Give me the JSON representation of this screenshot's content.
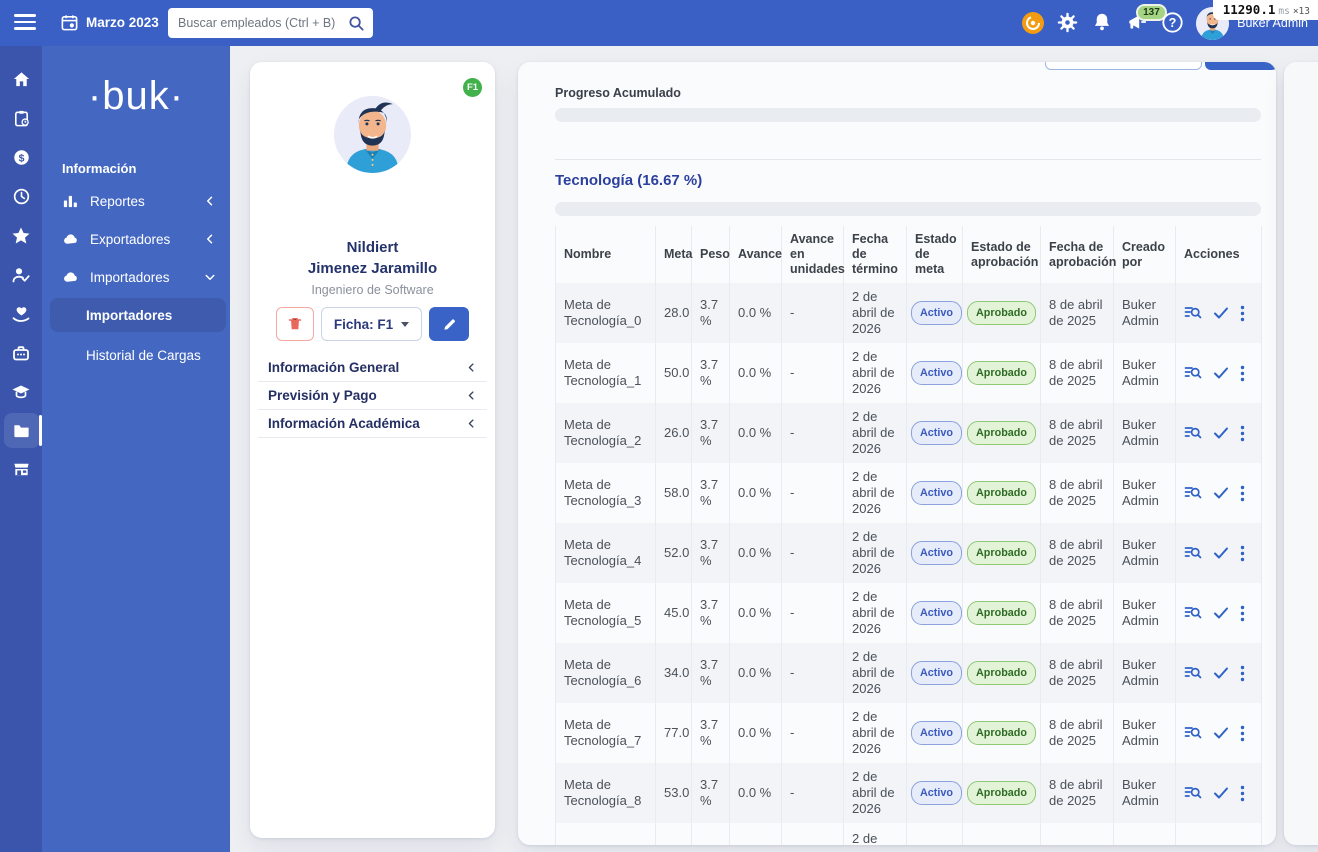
{
  "perf_overlay": {
    "value": "11290.1",
    "unit": "ms",
    "mult": "×13"
  },
  "topbar": {
    "month_label": "Marzo 2023",
    "search_placeholder": "Buscar empleados (Ctrl + B)",
    "notifications_count": "137",
    "user_name": "Buker Admin"
  },
  "sidebar": {
    "logo": "·buk·",
    "section_title": "Información",
    "items": [
      {
        "label": "Reportes",
        "icon": "bar-chart",
        "state": "collapsed"
      },
      {
        "label": "Exportadores",
        "icon": "cloud",
        "state": "collapsed"
      },
      {
        "label": "Importadores",
        "icon": "cloud",
        "state": "expanded"
      }
    ],
    "subitems": [
      {
        "label": "Importadores",
        "active": true
      },
      {
        "label": "Historial de Cargas",
        "active": false
      }
    ]
  },
  "profile": {
    "badge": "F1",
    "first_name": "Nildiert",
    "last_name": "Jimenez Jaramillo",
    "job_title": "Ingeniero de Software",
    "ficha_label": "Ficha: F1",
    "sections": [
      "Información General",
      "Previsión y Pago",
      "Información Académica"
    ]
  },
  "main": {
    "progress_title": "Progreso Acumulado",
    "section_title": "Tecnología (16.67 %)",
    "table": {
      "columns": [
        {
          "key": "nombre",
          "label": "Nombre"
        },
        {
          "key": "meta",
          "label": "Meta"
        },
        {
          "key": "peso",
          "label": "Peso"
        },
        {
          "key": "avance",
          "label": "Avance"
        },
        {
          "key": "avance_unidades",
          "label": "Avance en unidades"
        },
        {
          "key": "fecha_termino",
          "label": "Fecha de término"
        },
        {
          "key": "estado",
          "label": "Estado de meta"
        },
        {
          "key": "aprobacion",
          "label": "Estado de aprobación"
        },
        {
          "key": "fecha_aprobacion",
          "label": "Fecha de aprobación"
        },
        {
          "key": "creado_por",
          "label": "Creado por"
        },
        {
          "key": "acciones",
          "label": "Acciones"
        }
      ],
      "rows": [
        {
          "nombre": "Meta de Tecnología_0",
          "meta": "28.0",
          "peso": "3.7 %",
          "avance": "0.0 %",
          "avance_unidades": "-",
          "fecha_termino": "2 de abril de 2026",
          "estado": "Activo",
          "aprobacion": "Aprobado",
          "fecha_aprobacion": "8 de abril de 2025",
          "creado_por": "Buker Admin"
        },
        {
          "nombre": "Meta de Tecnología_1",
          "meta": "50.0",
          "peso": "3.7 %",
          "avance": "0.0 %",
          "avance_unidades": "-",
          "fecha_termino": "2 de abril de 2026",
          "estado": "Activo",
          "aprobacion": "Aprobado",
          "fecha_aprobacion": "8 de abril de 2025",
          "creado_por": "Buker Admin"
        },
        {
          "nombre": "Meta de Tecnología_2",
          "meta": "26.0",
          "peso": "3.7 %",
          "avance": "0.0 %",
          "avance_unidades": "-",
          "fecha_termino": "2 de abril de 2026",
          "estado": "Activo",
          "aprobacion": "Aprobado",
          "fecha_aprobacion": "8 de abril de 2025",
          "creado_por": "Buker Admin"
        },
        {
          "nombre": "Meta de Tecnología_3",
          "meta": "58.0",
          "peso": "3.7 %",
          "avance": "0.0 %",
          "avance_unidades": "-",
          "fecha_termino": "2 de abril de 2026",
          "estado": "Activo",
          "aprobacion": "Aprobado",
          "fecha_aprobacion": "8 de abril de 2025",
          "creado_por": "Buker Admin"
        },
        {
          "nombre": "Meta de Tecnología_4",
          "meta": "52.0",
          "peso": "3.7 %",
          "avance": "0.0 %",
          "avance_unidades": "-",
          "fecha_termino": "2 de abril de 2026",
          "estado": "Activo",
          "aprobacion": "Aprobado",
          "fecha_aprobacion": "8 de abril de 2025",
          "creado_por": "Buker Admin"
        },
        {
          "nombre": "Meta de Tecnología_5",
          "meta": "45.0",
          "peso": "3.7 %",
          "avance": "0.0 %",
          "avance_unidades": "-",
          "fecha_termino": "2 de abril de 2026",
          "estado": "Activo",
          "aprobacion": "Aprobado",
          "fecha_aprobacion": "8 de abril de 2025",
          "creado_por": "Buker Admin"
        },
        {
          "nombre": "Meta de Tecnología_6",
          "meta": "34.0",
          "peso": "3.7 %",
          "avance": "0.0 %",
          "avance_unidades": "-",
          "fecha_termino": "2 de abril de 2026",
          "estado": "Activo",
          "aprobacion": "Aprobado",
          "fecha_aprobacion": "8 de abril de 2025",
          "creado_por": "Buker Admin"
        },
        {
          "nombre": "Meta de Tecnología_7",
          "meta": "77.0",
          "peso": "3.7 %",
          "avance": "0.0 %",
          "avance_unidades": "-",
          "fecha_termino": "2 de abril de 2026",
          "estado": "Activo",
          "aprobacion": "Aprobado",
          "fecha_aprobacion": "8 de abril de 2025",
          "creado_por": "Buker Admin"
        },
        {
          "nombre": "Meta de Tecnología_8",
          "meta": "53.0",
          "peso": "3.7 %",
          "avance": "0.0 %",
          "avance_unidades": "-",
          "fecha_termino": "2 de abril de 2026",
          "estado": "Activo",
          "aprobacion": "Aprobado",
          "fecha_aprobacion": "8 de abril de 2025",
          "creado_por": "Buker Admin"
        },
        {
          "partial": true,
          "nombre": "",
          "meta": "",
          "peso": "",
          "avance": "",
          "avance_unidades": "",
          "fecha_termino": "2 de",
          "estado": "",
          "aprobacion": "",
          "fecha_aprobacion": "",
          "creado_por": ""
        }
      ]
    }
  },
  "colors": {
    "topbar": "#3a60c6",
    "rail": "#3a55ab",
    "sidebar": "#4468c2",
    "accent": "#3a63c8",
    "active_badge_text": "#3a5abc",
    "approved_badge_text": "#2e6b24",
    "f1_badge": "#41b14b",
    "notification_badge": "#a5d584",
    "points_icon": "#f39c12"
  }
}
